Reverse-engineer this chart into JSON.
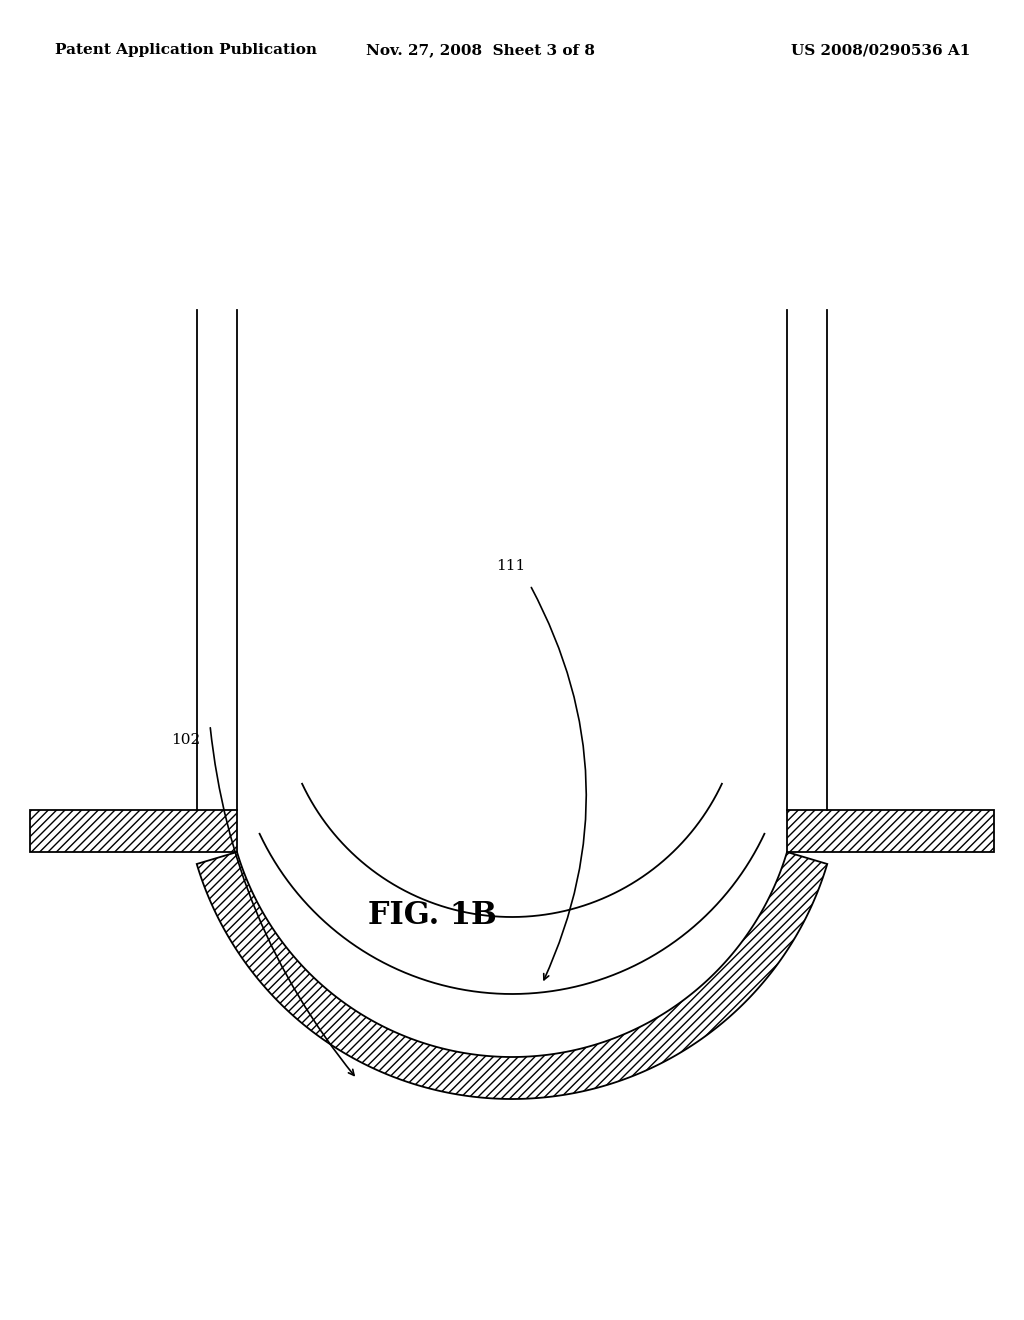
{
  "bg_color": "#ffffff",
  "line_color": "#000000",
  "header_left": "Patent Application Publication",
  "header_mid": "Nov. 27, 2008  Sheet 3 of 8",
  "header_right": "US 2008/0290536 A1",
  "fig_label": "FIG. 1B",
  "label_111": "111",
  "label_102": "102",
  "header_fontsize": 11,
  "fig_label_fontsize": 22,
  "annotation_fontsize": 11
}
